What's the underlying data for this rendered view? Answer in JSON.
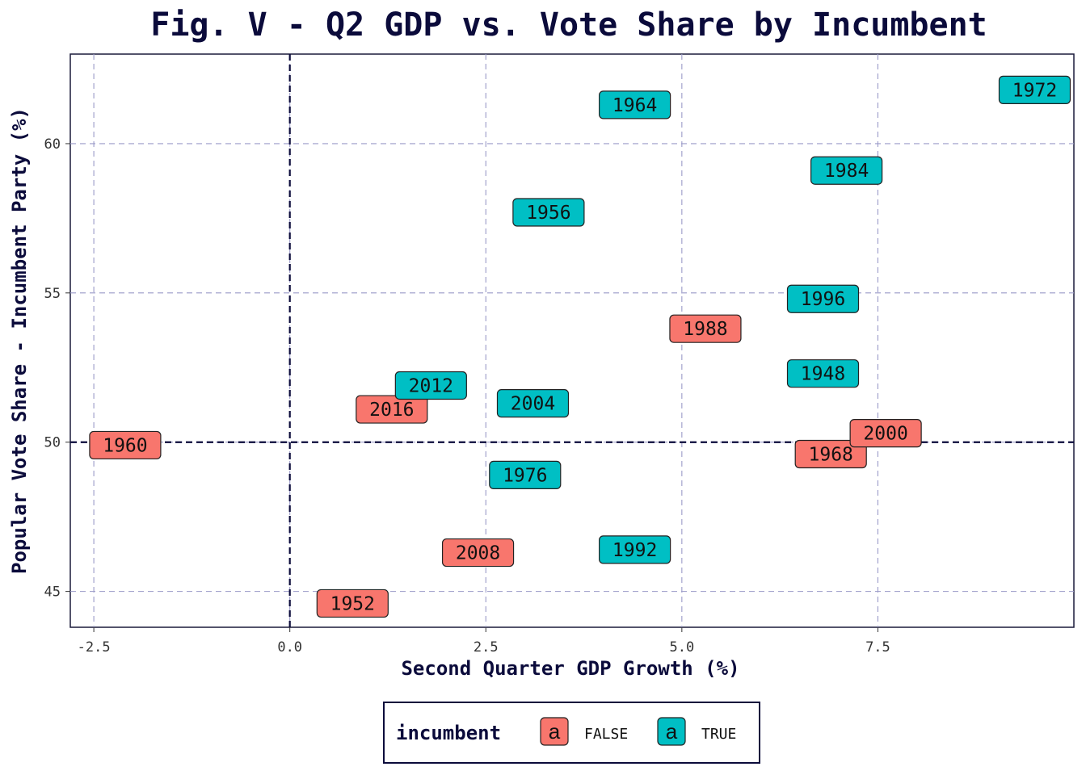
{
  "chart_data": {
    "type": "scatter",
    "title": "Fig. V - Q2 GDP vs. Vote Share by Incumbent",
    "xlabel": "Second Quarter GDP Growth (%)",
    "ylabel": "Popular Vote Share - Incumbent Party (%)",
    "xlim": [
      -2.8,
      10.0
    ],
    "ylim": [
      43.8,
      63.0
    ],
    "xticks": [
      -2.5,
      0.0,
      2.5,
      5.0,
      7.5
    ],
    "xtick_labels": [
      "-2.5",
      "0.0",
      "2.5",
      "5.0",
      "7.5"
    ],
    "yticks": [
      45,
      50,
      55,
      60
    ],
    "ytick_labels": [
      "45",
      "50",
      "55",
      "60"
    ],
    "grid": true,
    "reference_lines": {
      "x": 0,
      "y": 50
    },
    "legend": {
      "title": "incumbent",
      "position": "bottom",
      "key_glyph": "a",
      "entries": [
        {
          "label": "FALSE",
          "color": "#F8766D"
        },
        {
          "label": "TRUE",
          "color": "#00BFC4"
        }
      ]
    },
    "series": [
      {
        "name": "FALSE",
        "color": "#F8766D",
        "points": [
          {
            "label": "1952",
            "x": 0.8,
            "y": 44.6
          },
          {
            "label": "1960",
            "x": -2.1,
            "y": 49.9
          },
          {
            "label": "1968",
            "x": 6.9,
            "y": 49.6
          },
          {
            "label": "1988",
            "x": 5.3,
            "y": 53.8
          },
          {
            "label": "2000",
            "x": 7.6,
            "y": 50.3
          },
          {
            "label": "2008",
            "x": 2.4,
            "y": 46.3
          },
          {
            "label": "2016",
            "x": 1.3,
            "y": 51.1
          }
        ]
      },
      {
        "name": "TRUE",
        "color": "#00BFC4",
        "points": [
          {
            "label": "1948",
            "x": 6.8,
            "y": 52.3
          },
          {
            "label": "1956",
            "x": 3.3,
            "y": 57.7
          },
          {
            "label": "1964",
            "x": 4.4,
            "y": 61.3
          },
          {
            "label": "1972",
            "x": 9.5,
            "y": 61.8
          },
          {
            "label": "1976",
            "x": 3.0,
            "y": 48.9
          },
          {
            "label": "1984",
            "x": 7.1,
            "y": 59.1
          },
          {
            "label": "1992",
            "x": 4.4,
            "y": 46.4
          },
          {
            "label": "1996",
            "x": 6.8,
            "y": 54.8
          },
          {
            "label": "2004",
            "x": 3.1,
            "y": 51.3
          },
          {
            "label": "2012",
            "x": 1.8,
            "y": 51.9
          }
        ]
      }
    ]
  }
}
